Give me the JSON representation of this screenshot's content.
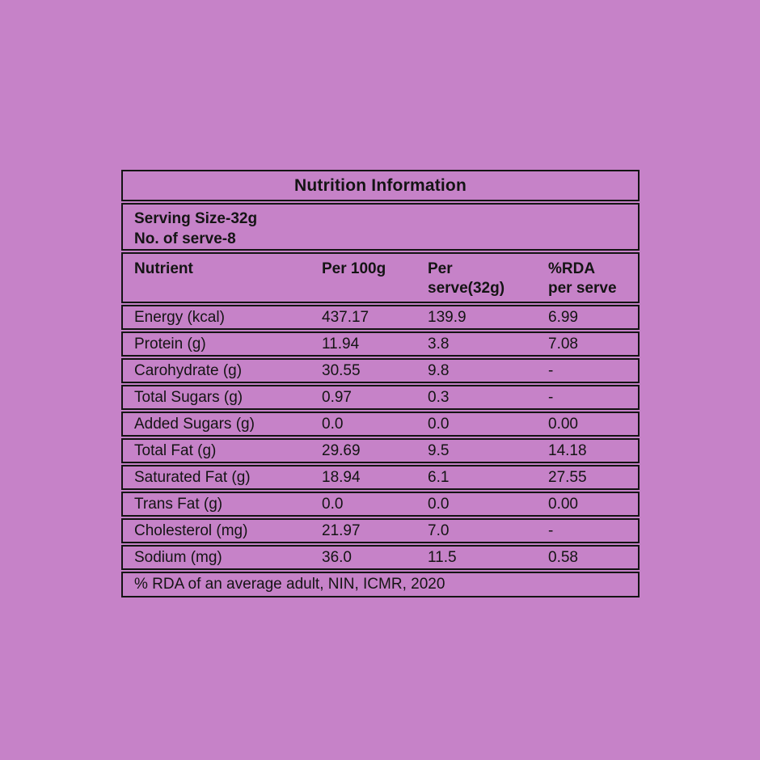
{
  "page": {
    "background_color": "#c682c8",
    "border_color": "#141414",
    "text_color": "#141414"
  },
  "table": {
    "title": "Nutrition Information",
    "serving": {
      "line1": "Serving Size-32g",
      "line2": "No. of serve-8"
    },
    "header": {
      "col1": "Nutrient",
      "col2": "Per 100g",
      "col3_line1": "Per",
      "col3_line2": "serve(32g)",
      "col4_line1": "%RDA",
      "col4_line2": "per serve"
    },
    "rows": [
      {
        "label": "Energy (kcal)",
        "per_100g": "437.17",
        "per_serve": "139.9",
        "rda_per_serve": "6.99"
      },
      {
        "label": "Protein (g)",
        "per_100g": "11.94",
        "per_serve": "3.8",
        "rda_per_serve": "7.08"
      },
      {
        "label": "Carohydrate (g)",
        "per_100g": "30.55",
        "per_serve": "9.8",
        "rda_per_serve": "-"
      },
      {
        "label": "Total Sugars (g)",
        "per_100g": "0.97",
        "per_serve": "0.3",
        "rda_per_serve": "-"
      },
      {
        "label": "Added Sugars (g)",
        "per_100g": "0.0",
        "per_serve": "0.0",
        "rda_per_serve": "0.00"
      },
      {
        "label": "Total Fat (g)",
        "per_100g": "29.69",
        "per_serve": "9.5",
        "rda_per_serve": "14.18"
      },
      {
        "label": "Saturated Fat (g)",
        "per_100g": "18.94",
        "per_serve": "6.1",
        "rda_per_serve": "27.55"
      },
      {
        "label": "Trans Fat (g)",
        "per_100g": "0.0",
        "per_serve": "0.0",
        "rda_per_serve": "0.00"
      },
      {
        "label": "Cholesterol (mg)",
        "per_100g": "21.97",
        "per_serve": "7.0",
        "rda_per_serve": "-"
      },
      {
        "label": "Sodium (mg)",
        "per_100g": "36.0",
        "per_serve": "11.5",
        "rda_per_serve": "0.58"
      }
    ],
    "footnote": "% RDA of an average adult, NIN, ICMR, 2020"
  }
}
